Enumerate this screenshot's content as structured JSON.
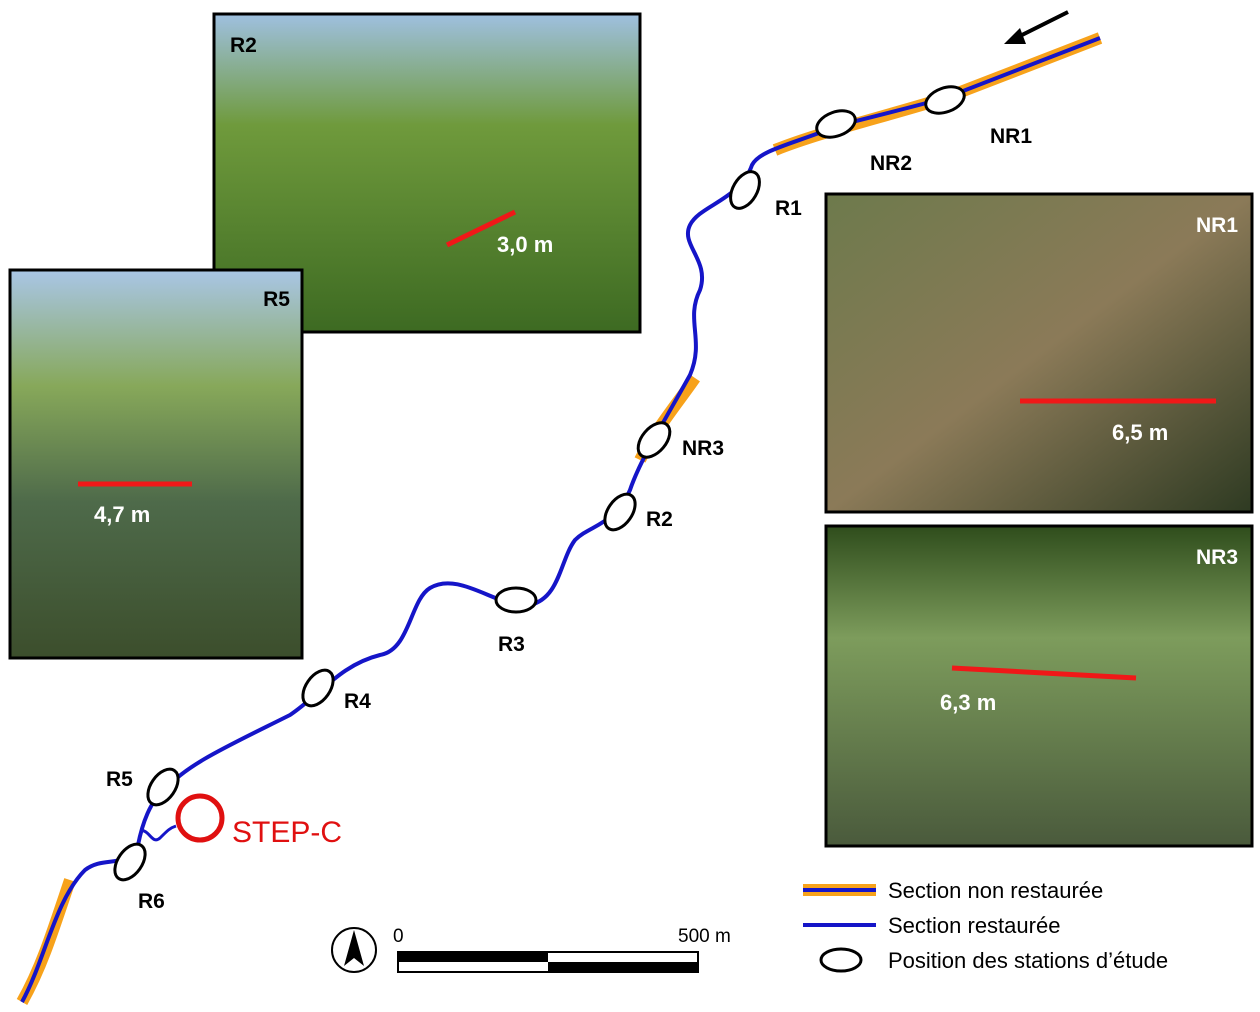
{
  "photos": [
    {
      "label": "R2",
      "width": "3,0 m"
    },
    {
      "label": "R5",
      "width": "4,7 m"
    },
    {
      "label": "NR1",
      "width": "6,5 m"
    },
    {
      "label": "NR3",
      "width": "6,3 m"
    }
  ],
  "stations": [
    "NR1",
    "NR2",
    "R1",
    "NR3",
    "R2",
    "R3",
    "R4",
    "R5",
    "R6"
  ],
  "plant": "STEP-C",
  "scale": {
    "start": "0",
    "end": "500 m"
  },
  "legend": [
    "Section non restaurée",
    "Section restaurée",
    "Position des stations d’étude"
  ]
}
